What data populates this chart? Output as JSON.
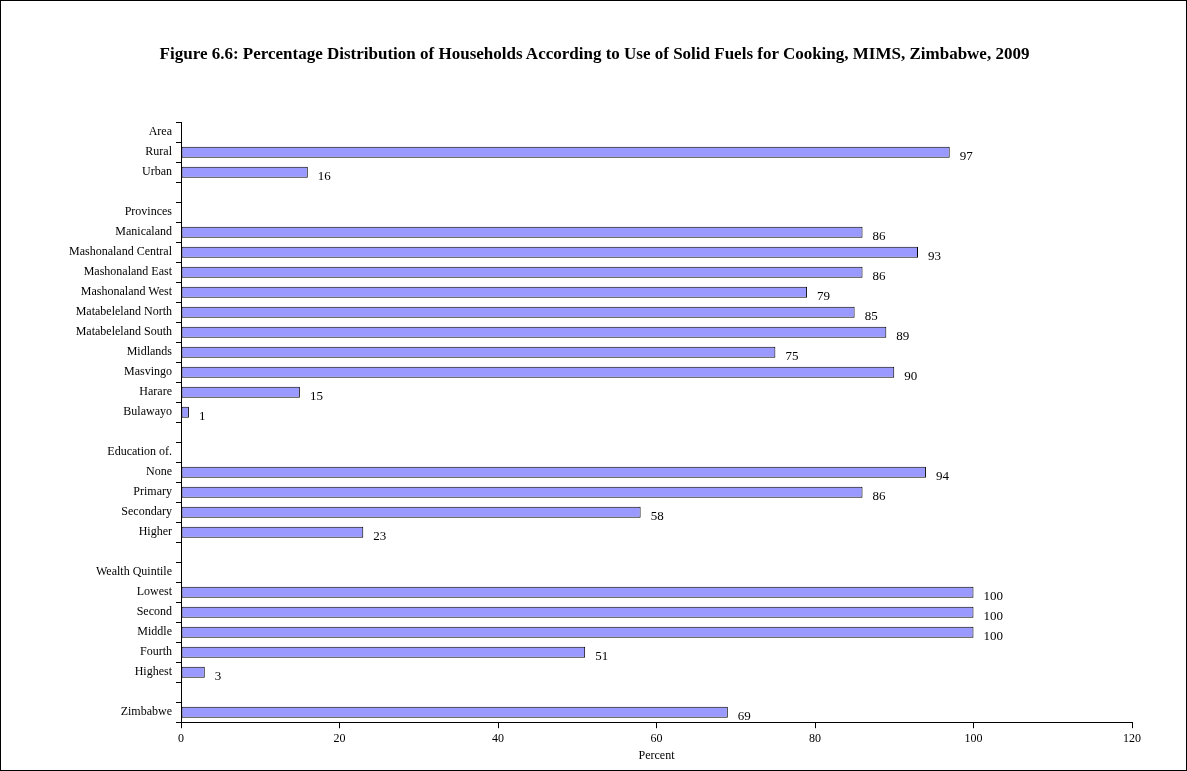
{
  "chart_data": {
    "type": "bar",
    "orientation": "horizontal",
    "title": "Figure 6.6: Percentage Distribution of Households According to  Use of Solid Fuels for Cooking, MIMS,  Zimbabwe, 2009",
    "xlabel": "Percent",
    "categories": [
      "Area",
      "Rural",
      "Urban",
      null,
      "Provinces",
      "Manicaland",
      "Mashonaland Central",
      "Mashonaland East",
      "Mashonaland West",
      "Matabeleland North",
      "Matabeleland South",
      "Midlands",
      "Masvingo",
      "Harare",
      "Bulawayo",
      null,
      "Education of.",
      "None",
      "Primary",
      "Secondary",
      "Higher",
      null,
      "Wealth Quintile",
      "Lowest",
      "Second",
      "Middle",
      "Fourth",
      "Highest",
      null,
      "Zimbabwe"
    ],
    "values": [
      null,
      97,
      16,
      null,
      null,
      86,
      93,
      86,
      79,
      85,
      89,
      75,
      90,
      15,
      1,
      null,
      null,
      94,
      86,
      58,
      23,
      null,
      null,
      100,
      100,
      100,
      51,
      3,
      null,
      69
    ],
    "color": "#9999ff",
    "data_labels": true,
    "xlim": [
      0,
      120
    ],
    "xticks": [
      0,
      20,
      40,
      60,
      80,
      100,
      120
    ],
    "grid": false
  }
}
